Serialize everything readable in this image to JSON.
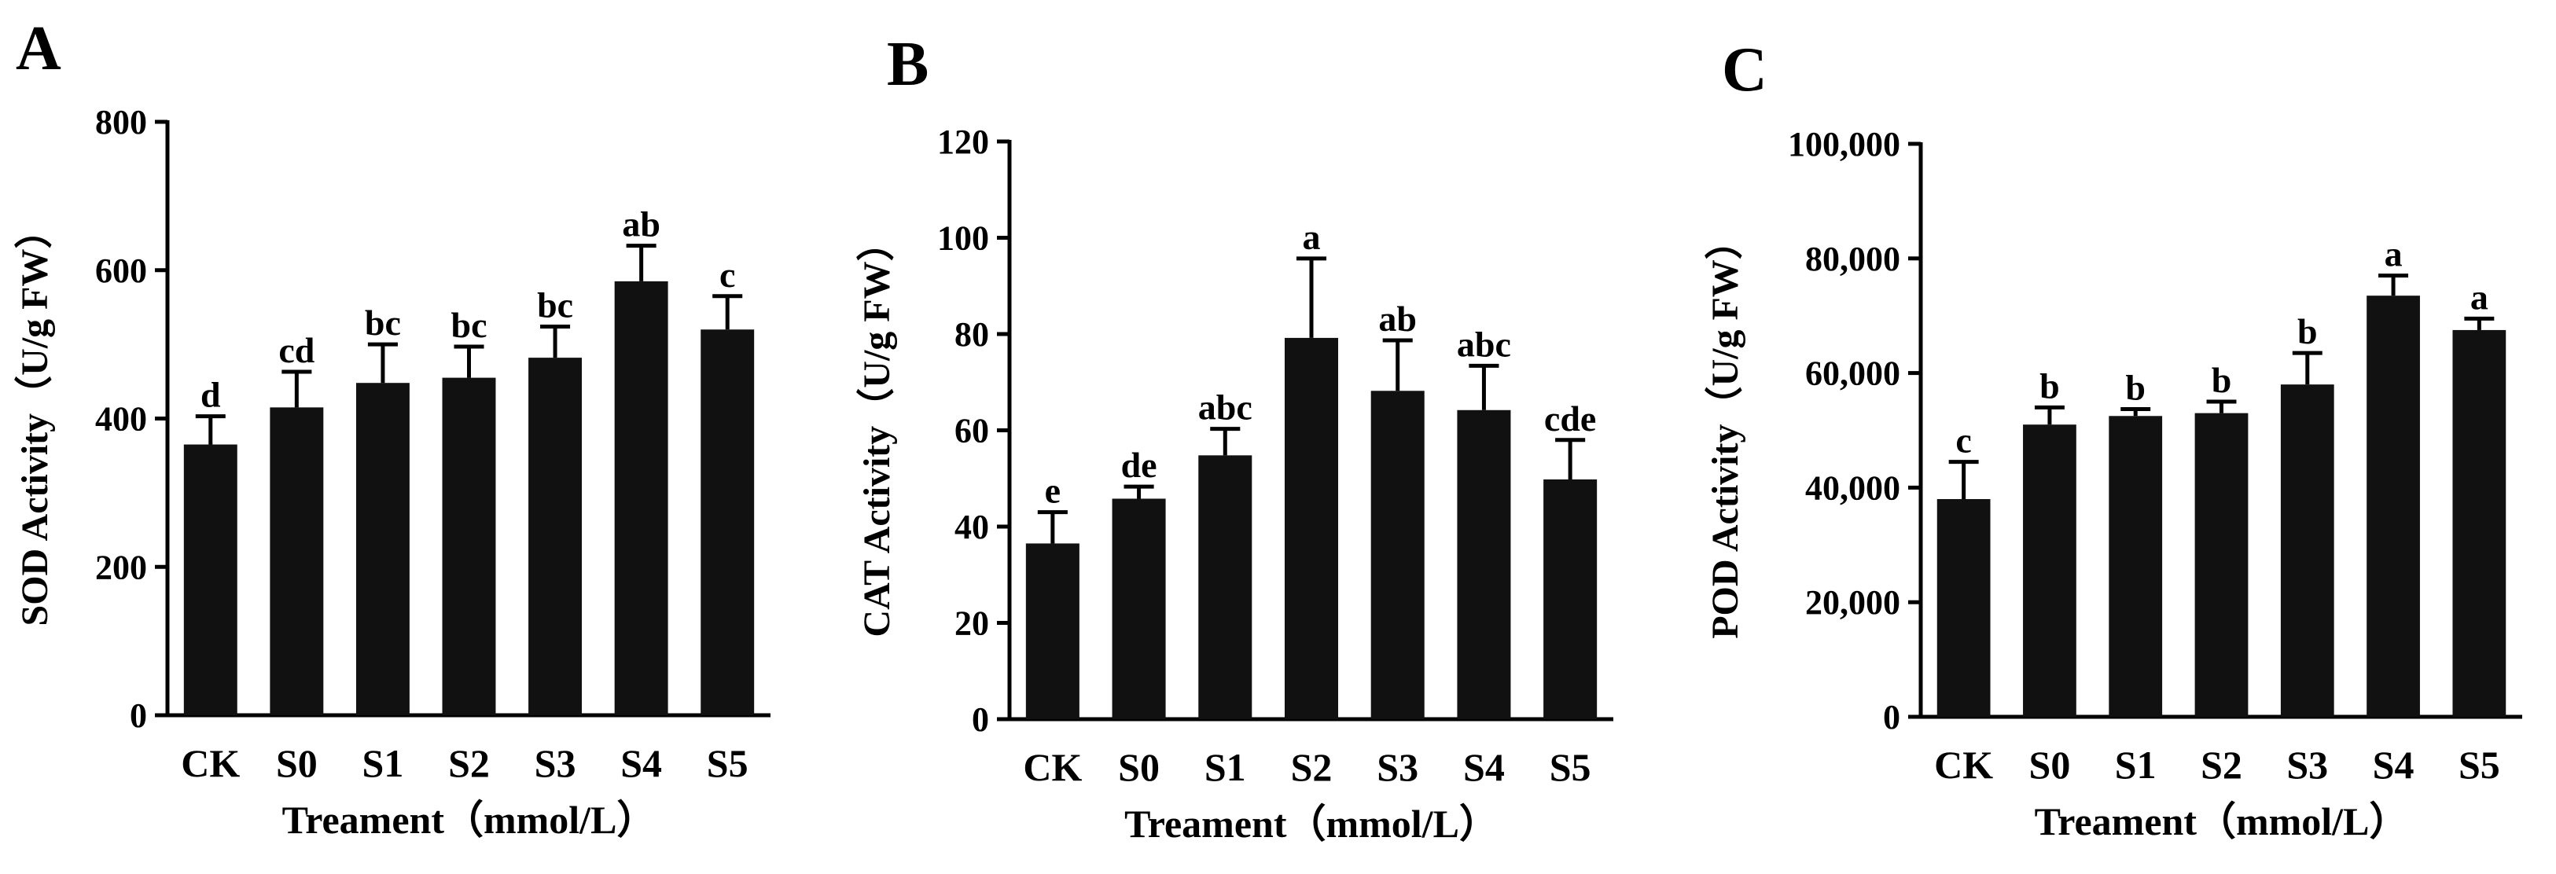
{
  "figure": {
    "panels": [
      {
        "letter": "A"
      },
      {
        "letter": "B"
      },
      {
        "letter": "C"
      }
    ]
  },
  "chart_data": [
    {
      "type": "bar",
      "panel": "A",
      "categories": [
        "CK",
        "S0",
        "S1",
        "S2",
        "S3",
        "S4",
        "S5"
      ],
      "values": [
        365,
        415,
        448,
        455,
        482,
        585,
        520
      ],
      "errors": [
        38,
        48,
        52,
        42,
        42,
        48,
        45
      ],
      "letters": [
        "d",
        "cd",
        "bc",
        "bc",
        "bc",
        "ab",
        "c"
      ],
      "xlabel": "Treament（mmol/L）",
      "ylabel": "SOD Activity（U/g FW）",
      "ylim": [
        0,
        800
      ],
      "yticks": [
        0,
        200,
        400,
        600,
        800
      ],
      "ytick_labels": [
        "0",
        "200",
        "400",
        "600",
        "800"
      ],
      "grid": false,
      "bar_color": "#111111"
    },
    {
      "type": "bar",
      "panel": "B",
      "categories": [
        "CK",
        "S0",
        "S1",
        "S2",
        "S3",
        "S4",
        "S5"
      ],
      "values": [
        36.5,
        45.8,
        54.8,
        79.2,
        68.2,
        64.2,
        49.8
      ],
      "errors": [
        6.5,
        2.5,
        5.5,
        16.5,
        10.5,
        9.2,
        8.2
      ],
      "letters": [
        "e",
        "de",
        "abc",
        "a",
        "ab",
        "abc",
        "cde"
      ],
      "xlabel": "Treament（mmol/L）",
      "ylabel": "CAT Activity（U/g FW）",
      "ylim": [
        0,
        120
      ],
      "yticks": [
        0,
        20,
        40,
        60,
        80,
        100,
        120
      ],
      "ytick_labels": [
        "0",
        "20",
        "40",
        "60",
        "80",
        "100",
        "120"
      ],
      "grid": false,
      "bar_color": "#111111"
    },
    {
      "type": "bar",
      "panel": "C",
      "categories": [
        "CK",
        "S0",
        "S1",
        "S2",
        "S3",
        "S4",
        "S5"
      ],
      "values": [
        38000,
        51000,
        52500,
        53000,
        58000,
        73500,
        67500
      ],
      "errors": [
        6500,
        3000,
        1200,
        2000,
        5500,
        3500,
        2000
      ],
      "letters": [
        "c",
        "b",
        "b",
        "b",
        "b",
        "a",
        "a"
      ],
      "xlabel": "Treament（mmol/L）",
      "ylabel": "POD Activity（U/g FW）",
      "ylim": [
        0,
        100000
      ],
      "yticks": [
        0,
        20000,
        40000,
        60000,
        80000,
        100000
      ],
      "ytick_labels": [
        "0",
        "20,000",
        "40,000",
        "60,000",
        "80,000",
        "100,000"
      ],
      "grid": false,
      "bar_color": "#111111"
    }
  ]
}
